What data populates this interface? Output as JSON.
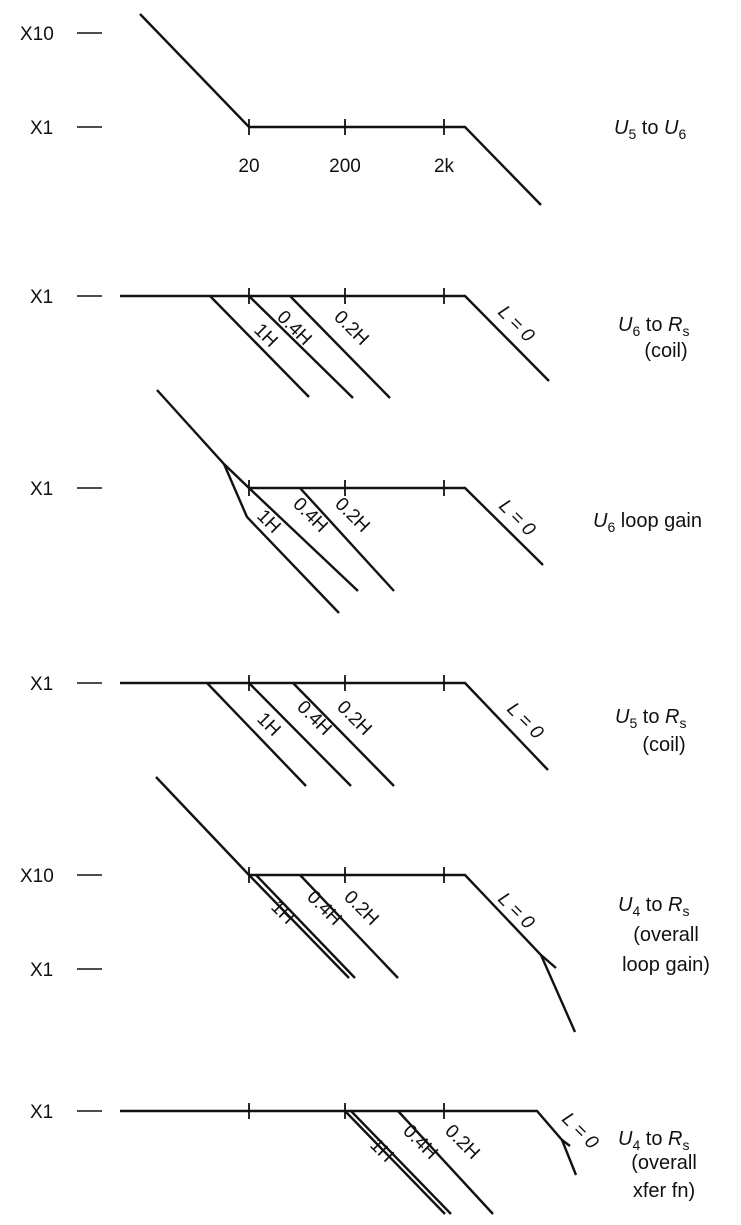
{
  "frequency_ticks": [
    "20",
    "200",
    "2k"
  ],
  "zero_inductance": "L = 0",
  "panels": [
    {
      "id": "u5-u6",
      "levels": [
        "X10",
        "X1"
      ],
      "title": {
        "a": "U",
        "a_sub": "5",
        "mid": " to ",
        "b": "U",
        "b_sub": "6"
      },
      "title_lines": []
    },
    {
      "id": "u6-rs",
      "levels": [
        "X1"
      ],
      "curve_labels": [
        "1H",
        "0.4H",
        "0.2H"
      ],
      "title": {
        "a": "U",
        "a_sub": "6",
        "mid": " to ",
        "b": "R",
        "b_sub": "s"
      },
      "title_lines": [
        "(coil)"
      ]
    },
    {
      "id": "u6-loop",
      "levels": [
        "X1"
      ],
      "curve_labels": [
        "1H",
        "0.4H",
        "0.2H"
      ],
      "title": {
        "a": "U",
        "a_sub": "6",
        "mid": " loop gain",
        "b": "",
        "b_sub": ""
      },
      "title_lines": []
    },
    {
      "id": "u5-rs",
      "levels": [
        "X1"
      ],
      "curve_labels": [
        "1H",
        "0.4H",
        "0.2H"
      ],
      "title": {
        "a": "U",
        "a_sub": "5",
        "mid": " to ",
        "b": "R",
        "b_sub": "s"
      },
      "title_lines": [
        "(coil)"
      ]
    },
    {
      "id": "u4-rs-loop",
      "levels": [
        "X10",
        "X1"
      ],
      "curve_labels": [
        "1H",
        "0.4H",
        "0.2H"
      ],
      "title": {
        "a": "U",
        "a_sub": "4",
        "mid": " to ",
        "b": "R",
        "b_sub": "s"
      },
      "title_lines": [
        "(overall",
        "loop gain)"
      ]
    },
    {
      "id": "u4-rs-xfer",
      "levels": [
        "X1"
      ],
      "curve_labels": [
        "1H",
        "0.4H",
        "0.2H"
      ],
      "title": {
        "a": "U",
        "a_sub": "4",
        "mid": " to ",
        "b": "R",
        "b_sub": "s"
      },
      "title_lines": [
        "(overall",
        "xfer fn)"
      ]
    }
  ]
}
